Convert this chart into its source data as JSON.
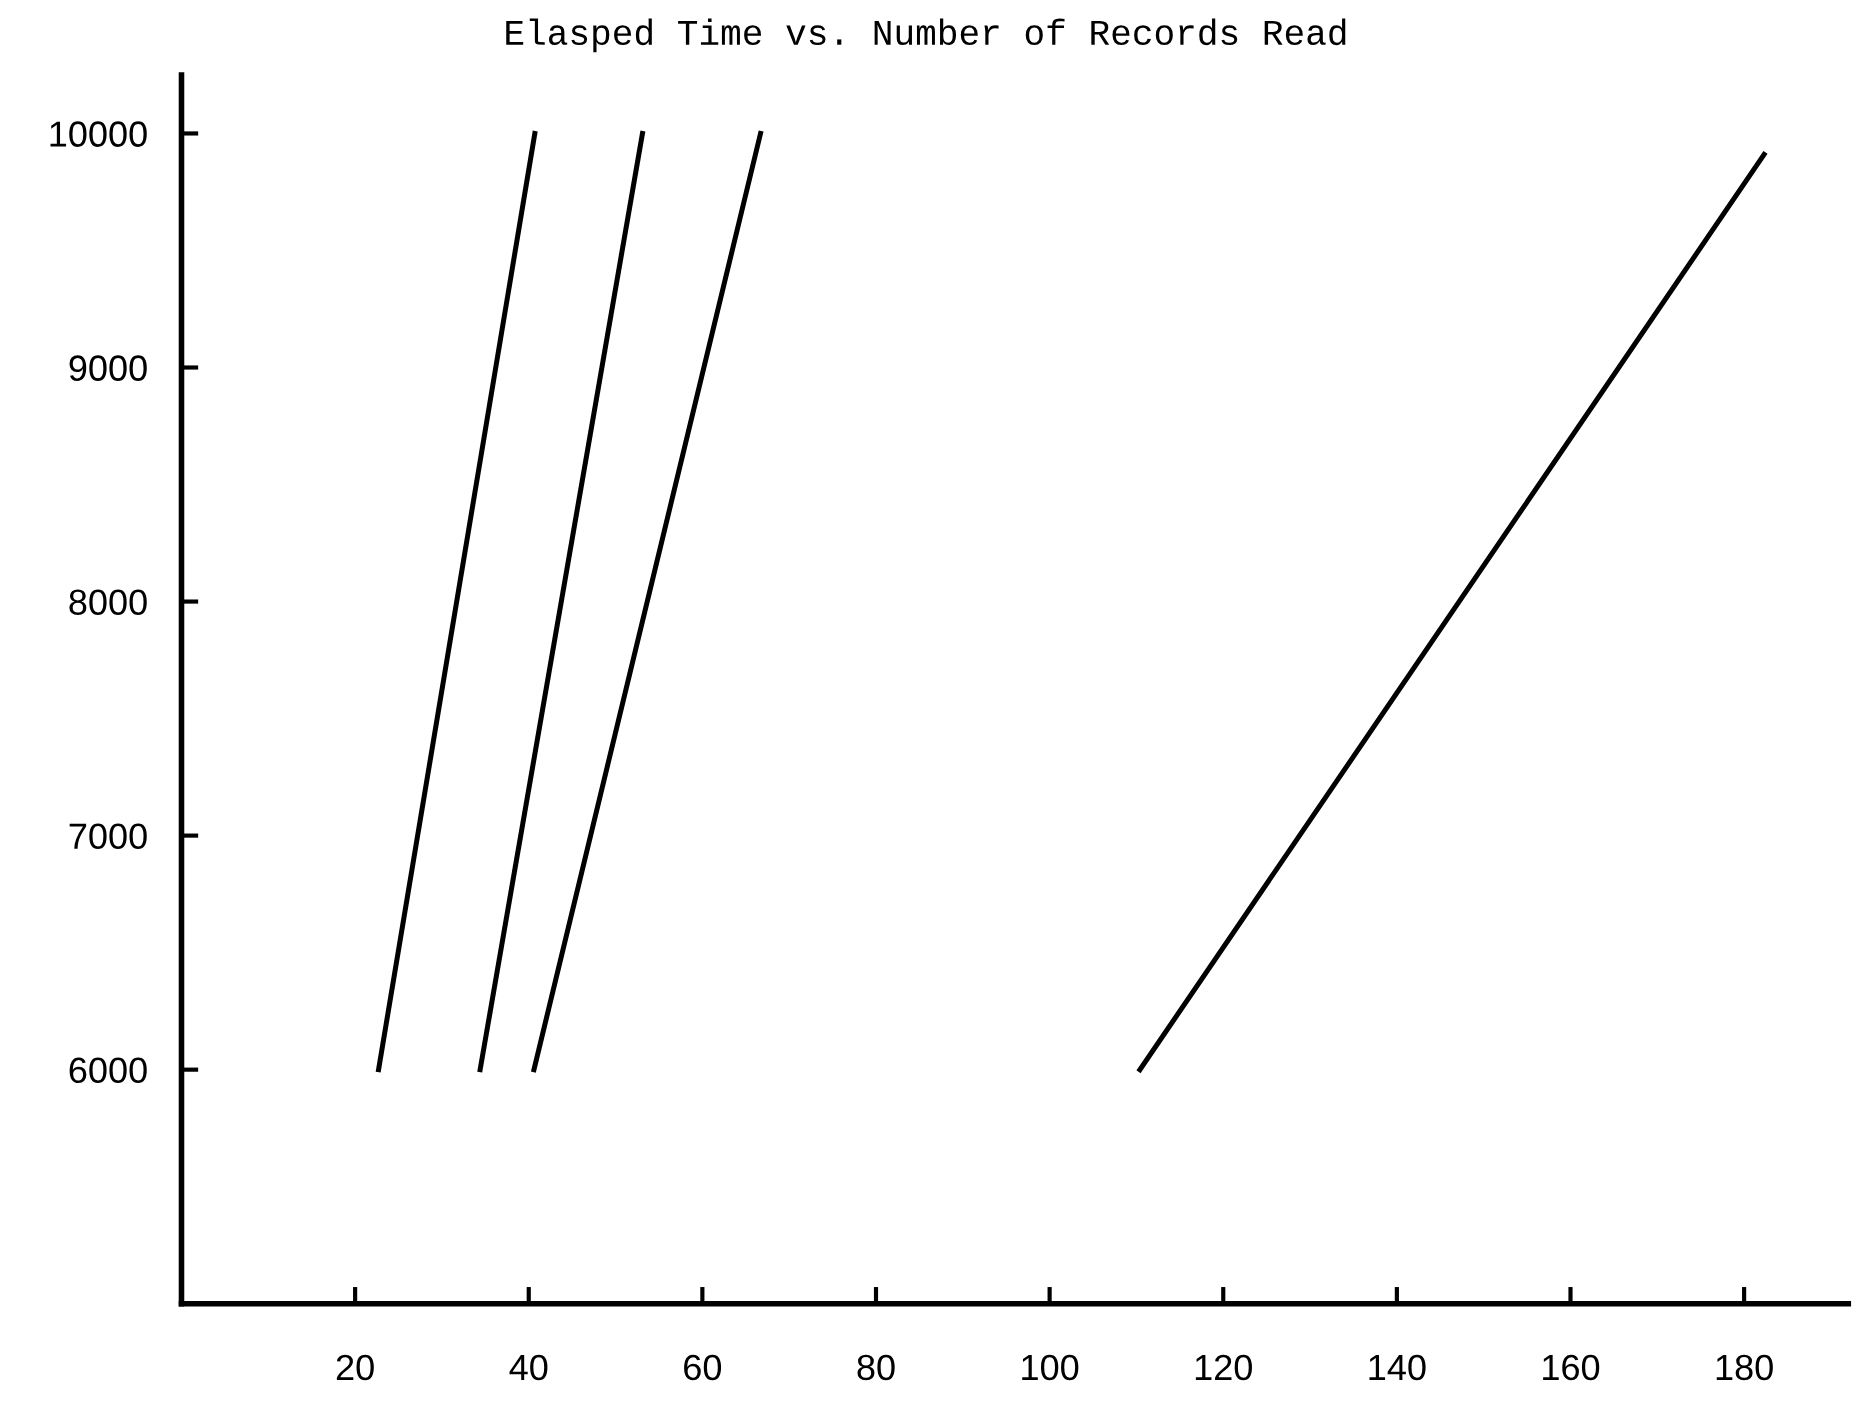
{
  "chart_data": {
    "type": "line",
    "title": "Elasped Time vs. Number of Records Read",
    "series": [
      {
        "color": "#000000",
        "x": [
          22.7,
          40.7
        ],
        "values": [
          6000,
          10000
        ]
      },
      {
        "color": "#000000",
        "x": [
          34.4,
          53.1
        ],
        "values": [
          6000,
          10000
        ]
      },
      {
        "color": "#000000",
        "x": [
          40.6,
          66.7
        ],
        "values": [
          6000,
          10000
        ]
      },
      {
        "color": "#000000",
        "x": [
          110.4,
          182.3
        ],
        "values": [
          6000,
          9910
        ]
      }
    ],
    "xlim": [
      0,
      192
    ],
    "xticks": [
      20,
      40,
      60,
      80,
      100,
      120,
      140,
      160,
      180
    ],
    "ylim": [
      5000,
      10250
    ],
    "yticks": [
      6000,
      7000,
      8000,
      9000,
      10000
    ],
    "grid": false,
    "legend": false,
    "marker": "none",
    "line_style": "solid"
  }
}
